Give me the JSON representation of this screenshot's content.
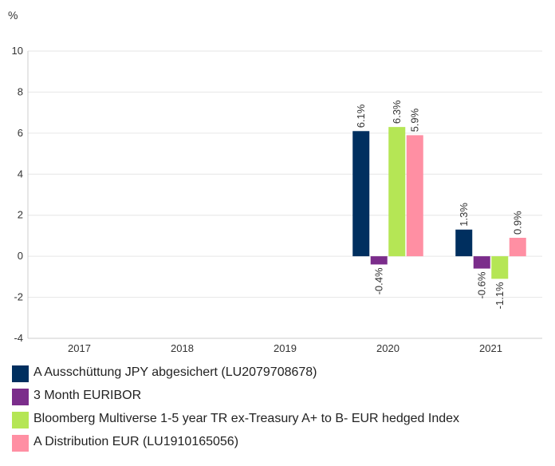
{
  "chart_data": {
    "type": "bar",
    "y_label": "%",
    "categories": [
      "2017",
      "2018",
      "2019",
      "2020",
      "2021"
    ],
    "series": [
      {
        "name": "A Ausschüttung JPY abgesichert (LU2079708678)",
        "color": "#002f5f",
        "values": [
          null,
          null,
          null,
          6.1,
          1.3
        ],
        "value_labels": [
          null,
          null,
          null,
          "6.1%",
          "1.3%"
        ]
      },
      {
        "name": "3 Month EURIBOR",
        "color": "#7b2d8b",
        "values": [
          null,
          null,
          null,
          -0.4,
          -0.6
        ],
        "value_labels": [
          null,
          null,
          null,
          "-0.4%",
          "-0.6%"
        ]
      },
      {
        "name": "Bloomberg Multiverse 1-5 year TR ex-Treasury A+ to B- EUR hedged Index",
        "color": "#b5e655",
        "values": [
          null,
          null,
          null,
          6.3,
          -1.1
        ],
        "value_labels": [
          null,
          null,
          null,
          "6.3%",
          "-1.1%"
        ]
      },
      {
        "name": "A Distribution EUR (LU1910165056)",
        "color": "#ff8fa3",
        "values": [
          null,
          null,
          null,
          5.9,
          0.9
        ],
        "value_labels": [
          null,
          null,
          null,
          "5.9%",
          "0.9%"
        ]
      }
    ],
    "ylim": [
      -4,
      10
    ],
    "yticks": [
      -4,
      -2,
      0,
      2,
      4,
      6,
      8,
      10
    ],
    "grid": true
  }
}
